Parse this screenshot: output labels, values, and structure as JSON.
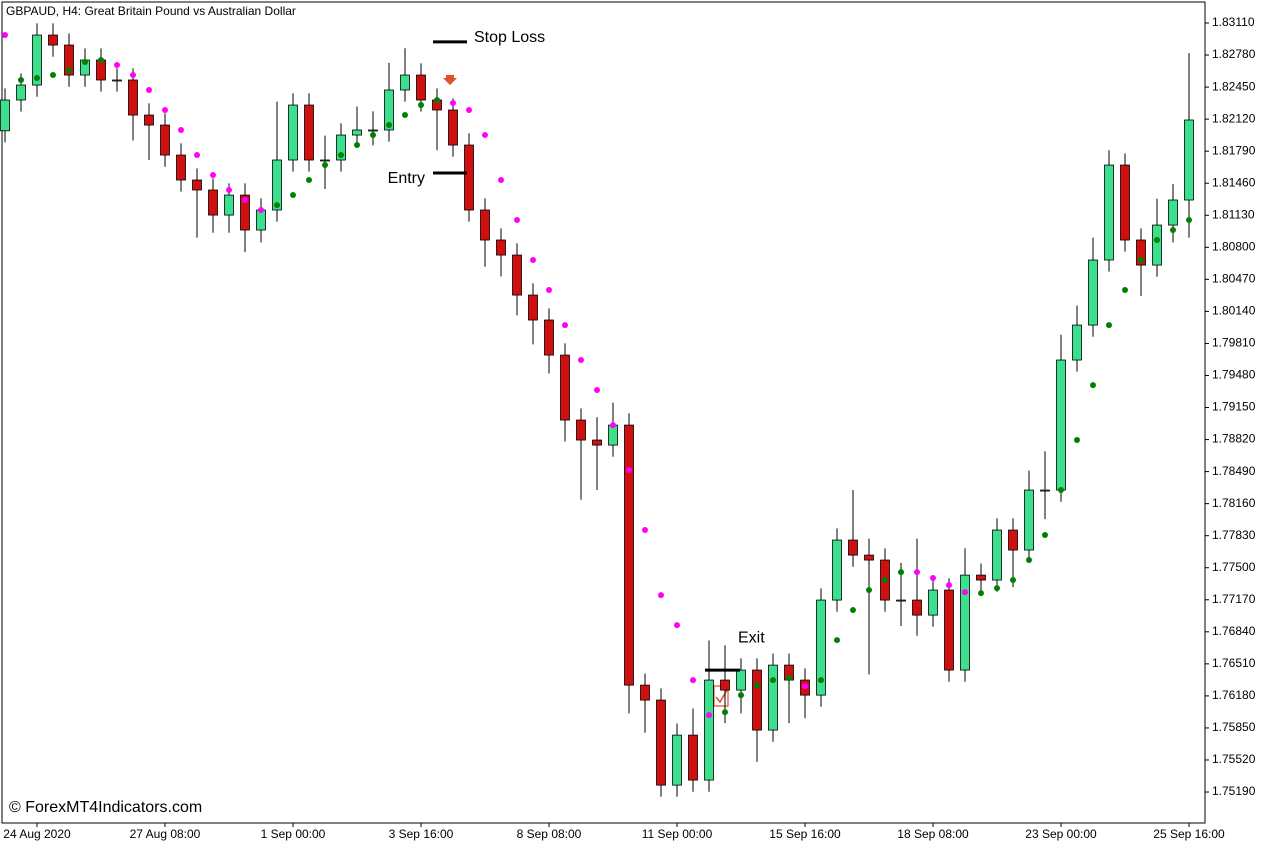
{
  "chart_data": {
    "type": "candlestick",
    "title": "GBPAUD, H4:  Great Britain Pound vs Australian Dollar",
    "credit": "© ForexMT4Indicators.com",
    "up_color": "#3ce08c",
    "down_color": "#d01010",
    "ylim": [
      1.74871,
      1.83316
    ],
    "yticks": [
      {
        "value": 1.8311,
        "label": "1.83110"
      },
      {
        "value": 1.8278,
        "label": "1.82780"
      },
      {
        "value": 1.8245,
        "label": "1.82450"
      },
      {
        "value": 1.8212,
        "label": "1.82120"
      },
      {
        "value": 1.8179,
        "label": "1.81790"
      },
      {
        "value": 1.8146,
        "label": "1.81460"
      },
      {
        "value": 1.8113,
        "label": "1.81130"
      },
      {
        "value": 1.808,
        "label": "1.80800"
      },
      {
        "value": 1.8047,
        "label": "1.80470"
      },
      {
        "value": 1.8014,
        "label": "1.80140"
      },
      {
        "value": 1.7981,
        "label": "1.79810"
      },
      {
        "value": 1.7948,
        "label": "1.79480"
      },
      {
        "value": 1.7915,
        "label": "1.79150"
      },
      {
        "value": 1.7882,
        "label": "1.78820"
      },
      {
        "value": 1.7849,
        "label": "1.78490"
      },
      {
        "value": 1.7816,
        "label": "1.78160"
      },
      {
        "value": 1.7783,
        "label": "1.77830"
      },
      {
        "value": 1.775,
        "label": "1.77500"
      },
      {
        "value": 1.7717,
        "label": "1.77170"
      },
      {
        "value": 1.7684,
        "label": "1.76840"
      },
      {
        "value": 1.7651,
        "label": "1.76510"
      },
      {
        "value": 1.7618,
        "label": "1.76180"
      },
      {
        "value": 1.7585,
        "label": "1.75850"
      },
      {
        "value": 1.7552,
        "label": "1.75520"
      },
      {
        "value": 1.7519,
        "label": "1.75190"
      }
    ],
    "categories": [
      null,
      null,
      "24 Aug 2020",
      null,
      null,
      null,
      null,
      null,
      null,
      null,
      "27 Aug 08:00",
      null,
      null,
      null,
      null,
      null,
      null,
      null,
      "1 Sep 00:00",
      null,
      null,
      null,
      null,
      null,
      null,
      null,
      "3 Sep 16:00",
      null,
      null,
      null,
      null,
      null,
      null,
      null,
      "8 Sep 08:00",
      null,
      null,
      null,
      null,
      null,
      null,
      null,
      "11 Sep 00:00",
      null,
      null,
      null,
      null,
      null,
      null,
      null,
      "15 Sep 16:00",
      null,
      null,
      null,
      null,
      null,
      null,
      null,
      "18 Sep 08:00",
      null,
      null,
      null,
      null,
      null,
      null,
      null,
      "23 Sep 00:00",
      null,
      null,
      null,
      null,
      null,
      null,
      null,
      "25 Sep 16:00"
    ],
    "ohlc": [
      [
        1.82,
        1.82437,
        1.8188,
        1.82317
      ],
      [
        1.82317,
        1.82591,
        1.82197,
        1.82471
      ],
      [
        1.82471,
        1.83106,
        1.82351,
        1.82986
      ],
      [
        1.82986,
        1.83106,
        1.82763,
        1.82883
      ],
      [
        1.82883,
        1.83003,
        1.82454,
        1.82574
      ],
      [
        1.82574,
        1.82849,
        1.82454,
        1.82729
      ],
      [
        1.82729,
        1.82849,
        1.82403,
        1.82523
      ],
      [
        1.82523,
        1.82643,
        1.82403,
        1.82523
      ],
      [
        1.82523,
        1.82643,
        1.819,
        1.82162
      ],
      [
        1.82162,
        1.82282,
        1.817,
        1.82059
      ],
      [
        1.82059,
        1.82179,
        1.8163,
        1.8175
      ],
      [
        1.8175,
        1.8187,
        1.81373,
        1.81493
      ],
      [
        1.81493,
        1.81613,
        1.809,
        1.8139
      ],
      [
        1.8139,
        1.8151,
        1.8095,
        1.81132
      ],
      [
        1.81132,
        1.81458,
        1.8095,
        1.81338
      ],
      [
        1.81338,
        1.81458,
        1.8075,
        1.80978
      ],
      [
        1.80978,
        1.81304,
        1.8085,
        1.81184
      ],
      [
        1.81184,
        1.823,
        1.81064,
        1.81699
      ],
      [
        1.81699,
        1.82385,
        1.81579,
        1.82265
      ],
      [
        1.82265,
        1.82385,
        1.81579,
        1.81699
      ],
      [
        1.81699,
        1.8195,
        1.814,
        1.81699
      ],
      [
        1.81699,
        1.82076,
        1.81579,
        1.81956
      ],
      [
        1.81956,
        1.8225,
        1.81836,
        1.82008
      ],
      [
        1.82008,
        1.822,
        1.8185,
        1.82008
      ],
      [
        1.82008,
        1.827,
        1.81888,
        1.8242
      ],
      [
        1.8242,
        1.8285,
        1.823,
        1.82574
      ],
      [
        1.82574,
        1.82694,
        1.82197,
        1.82317
      ],
      [
        1.82317,
        1.82437,
        1.818,
        1.82214
      ],
      [
        1.82214,
        1.82334,
        1.81733,
        1.81853
      ],
      [
        1.81853,
        1.81973,
        1.81064,
        1.81184
      ],
      [
        1.81184,
        1.81304,
        1.806,
        1.80875
      ],
      [
        1.80875,
        1.80995,
        1.805,
        1.8072
      ],
      [
        1.8072,
        1.8084,
        1.801,
        1.80308
      ],
      [
        1.80308,
        1.80428,
        1.798,
        1.80051
      ],
      [
        1.80051,
        1.80171,
        1.795,
        1.7969
      ],
      [
        1.7969,
        1.7981,
        1.788,
        1.79021
      ],
      [
        1.79021,
        1.79141,
        1.782,
        1.78815
      ],
      [
        1.78815,
        1.7905,
        1.783,
        1.78763
      ],
      [
        1.78763,
        1.792,
        1.78643,
        1.78969
      ],
      [
        1.78969,
        1.79089,
        1.76,
        1.76291
      ],
      [
        1.76291,
        1.76411,
        1.758,
        1.76137
      ],
      [
        1.76137,
        1.76257,
        1.75141,
        1.75261
      ],
      [
        1.75261,
        1.75896,
        1.75141,
        1.75776
      ],
      [
        1.75776,
        1.7605,
        1.75193,
        1.75313
      ],
      [
        1.75313,
        1.7675,
        1.75193,
        1.76343
      ],
      [
        1.76343,
        1.767,
        1.759,
        1.7624
      ],
      [
        1.7624,
        1.76566,
        1.76,
        1.76446
      ],
      [
        1.76446,
        1.76566,
        1.755,
        1.75828
      ],
      [
        1.75828,
        1.76617,
        1.75708,
        1.76497
      ],
      [
        1.76497,
        1.76617,
        1.759,
        1.76343
      ],
      [
        1.76343,
        1.76463,
        1.7595,
        1.76188
      ],
      [
        1.76188,
        1.77287,
        1.76068,
        1.77167
      ],
      [
        1.77167,
        1.77905,
        1.77047,
        1.77785
      ],
      [
        1.77785,
        1.783,
        1.7751,
        1.7763
      ],
      [
        1.7763,
        1.778,
        1.764,
        1.77579
      ],
      [
        1.77579,
        1.77699,
        1.77047,
        1.77167
      ],
      [
        1.77167,
        1.7755,
        1.769,
        1.77167
      ],
      [
        1.77167,
        1.778,
        1.768,
        1.77012
      ],
      [
        1.77012,
        1.7739,
        1.76892,
        1.7727
      ],
      [
        1.7727,
        1.7739,
        1.76326,
        1.76446
      ],
      [
        1.76446,
        1.777,
        1.76326,
        1.77424
      ],
      [
        1.77424,
        1.77544,
        1.77253,
        1.77373
      ],
      [
        1.77373,
        1.78008,
        1.77253,
        1.77888
      ],
      [
        1.77888,
        1.78008,
        1.773,
        1.77682
      ],
      [
        1.77682,
        1.785,
        1.77562,
        1.783
      ],
      [
        1.783,
        1.787,
        1.78,
        1.783
      ],
      [
        1.783,
        1.799,
        1.7818,
        1.79639
      ],
      [
        1.79639,
        1.802,
        1.79519,
        1.79999
      ],
      [
        1.79999,
        1.809,
        1.79879,
        1.80669
      ],
      [
        1.80669,
        1.818,
        1.80549,
        1.81647
      ],
      [
        1.81647,
        1.81767,
        1.80755,
        1.80875
      ],
      [
        1.80875,
        1.80995,
        1.803,
        1.80617
      ],
      [
        1.80617,
        1.813,
        1.80497,
        1.81029
      ],
      [
        1.81029,
        1.8145,
        1.8085,
        1.81287
      ],
      [
        1.81287,
        1.828,
        1.809,
        1.82111
      ]
    ],
    "overlays": [
      {
        "color": "#ff00ff",
        "values": [
          1.82986,
          null,
          null,
          null,
          null,
          null,
          null,
          1.82677,
          1.82574,
          1.8242,
          1.82214,
          1.82008,
          1.8175,
          1.81544,
          1.8139,
          1.81287,
          1.81184,
          null,
          null,
          null,
          null,
          null,
          null,
          null,
          null,
          null,
          null,
          null,
          1.82286,
          1.82214,
          1.81956,
          1.81493,
          1.81081,
          1.80669,
          1.8036,
          1.79999,
          1.79639,
          1.7933,
          1.78969,
          1.78506,
          1.77888,
          1.77218,
          1.76909,
          1.76343,
          1.75982,
          null,
          null,
          null,
          null,
          null,
          1.76281,
          null,
          null,
          null,
          null,
          null,
          null,
          1.77455,
          1.77394,
          1.77321,
          1.77249,
          null,
          null,
          null,
          null,
          null,
          null,
          null,
          null,
          null,
          null,
          null,
          null,
          null,
          null
        ]
      },
      {
        "color": "#008000",
        "values": [
          null,
          1.82523,
          1.82543,
          1.82574,
          1.82626,
          1.82708,
          1.82729,
          null,
          null,
          null,
          null,
          null,
          null,
          null,
          null,
          null,
          null,
          1.81235,
          1.81338,
          1.81493,
          1.81647,
          1.8175,
          1.81853,
          1.81956,
          1.82059,
          1.82162,
          1.82265,
          1.82317,
          null,
          null,
          null,
          null,
          null,
          null,
          null,
          null,
          null,
          null,
          null,
          null,
          null,
          null,
          null,
          null,
          null,
          1.76013,
          1.76188,
          1.76291,
          1.76343,
          1.76363,
          null,
          1.76343,
          1.76755,
          1.77064,
          1.7727,
          1.77373,
          1.77455,
          null,
          null,
          null,
          null,
          1.77239,
          1.7729,
          1.77373,
          1.77579,
          1.77837,
          1.783,
          1.78815,
          1.79381,
          1.79999,
          1.8036,
          1.80669,
          1.80875,
          1.80978,
          1.81081
        ]
      }
    ],
    "annotations": [
      {
        "text": "Stop Loss",
        "value": 1.82915
      },
      {
        "text": "Entry",
        "value": 1.81565
      },
      {
        "text": "Exit",
        "value": 1.76446
      }
    ]
  }
}
